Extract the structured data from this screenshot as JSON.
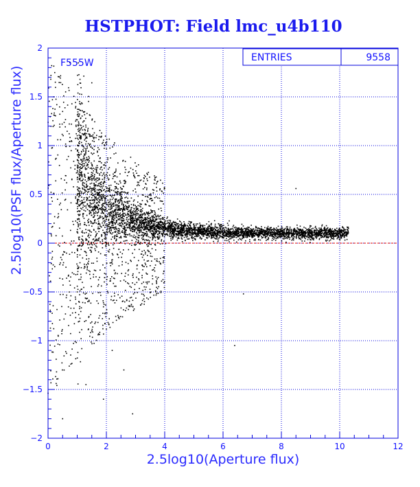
{
  "chart_data": {
    "type": "scatter",
    "title": "HSTPHOT: Field lmc_u4b110",
    "xlabel": "2.5log10(Aperture flux)",
    "ylabel": "2.5log10(PSF flux/Aperture flux)",
    "filter_label": "F555W",
    "stats": {
      "label": "ENTRIES",
      "value": "9558"
    },
    "xlim": [
      0,
      12
    ],
    "ylim": [
      -2,
      2
    ],
    "xticks": [
      0,
      2,
      4,
      6,
      8,
      10,
      12
    ],
    "yticks": [
      -2,
      -1.5,
      -1,
      -0.5,
      0,
      0.5,
      1,
      1.5,
      2
    ],
    "xtick_labels": [
      "0",
      "2",
      "4",
      "6",
      "8",
      "10",
      "12"
    ],
    "ytick_labels": [
      "−2",
      "−1.5",
      "−1",
      "−0.5",
      "0",
      "0.5",
      "1",
      "1.5",
      "2"
    ],
    "grid": true,
    "reference_line": {
      "y": 0
    },
    "colors": {
      "axis": "#0000dd",
      "text": "#1010ff",
      "points": "#000000",
      "reference_line": "#dd0000"
    },
    "points_count": 9558,
    "points_sample": [
      [
        0.1,
        1.72
      ],
      [
        0.25,
        1.65
      ],
      [
        0.2,
        1.5
      ],
      [
        0.3,
        1.42
      ],
      [
        0.5,
        1.35
      ],
      [
        0.75,
        1.85
      ],
      [
        0.4,
        1.22
      ],
      [
        0.8,
        1.05
      ],
      [
        1.1,
        1.1
      ],
      [
        1.3,
        0.95
      ],
      [
        1.5,
        0.7
      ],
      [
        1.8,
        0.55
      ],
      [
        2.1,
        0.42
      ],
      [
        2.5,
        0.35
      ],
      [
        3.0,
        0.28
      ],
      [
        3.5,
        0.22
      ],
      [
        4.0,
        0.18
      ],
      [
        4.5,
        0.15
      ],
      [
        5.0,
        0.14
      ],
      [
        5.5,
        0.13
      ],
      [
        6.0,
        0.13
      ],
      [
        6.5,
        0.12
      ],
      [
        7.0,
        0.12
      ],
      [
        7.5,
        0.12
      ],
      [
        8.0,
        0.13
      ],
      [
        8.5,
        0.12
      ],
      [
        9.0,
        0.13
      ],
      [
        9.5,
        0.14
      ],
      [
        10.0,
        0.15
      ],
      [
        10.3,
        0.15
      ],
      [
        8.5,
        0.56
      ],
      [
        1.0,
        -0.5
      ],
      [
        1.5,
        -0.9
      ],
      [
        2.2,
        -1.1
      ],
      [
        2.6,
        -1.3
      ],
      [
        1.9,
        -1.6
      ],
      [
        0.5,
        -1.8
      ],
      [
        2.9,
        -1.75
      ],
      [
        1.3,
        -1.45
      ],
      [
        6.7,
        -0.52
      ],
      [
        6.4,
        -1.05
      ]
    ]
  }
}
